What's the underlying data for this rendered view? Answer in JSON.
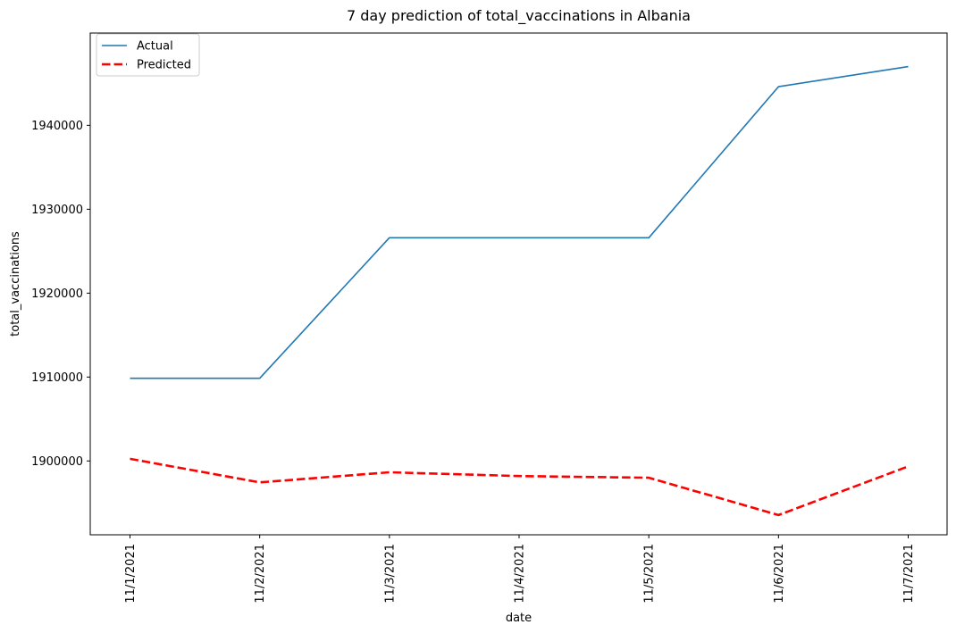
{
  "chart_data": {
    "type": "line",
    "title": "7 day prediction of total_vaccinations in Albania",
    "xlabel": "date",
    "ylabel": "total_vaccinations",
    "categories": [
      "11/1/2021",
      "11/2/2021",
      "11/3/2021",
      "11/4/2021",
      "11/5/2021",
      "11/6/2021",
      "11/7/2021"
    ],
    "yticks": [
      1900000,
      1910000,
      1920000,
      1930000,
      1940000
    ],
    "ylim": [
      1891200,
      1951000
    ],
    "grid": false,
    "legend_position": "top-left",
    "series": [
      {
        "name": "Actual",
        "color": "#1f77b4",
        "style": "solid",
        "values": [
          1909850,
          1909850,
          1926600,
          1926600,
          1926600,
          1944600,
          1947000
        ]
      },
      {
        "name": "Predicted",
        "color": "#ff0000",
        "style": "dashed",
        "values": [
          1900250,
          1897450,
          1898650,
          1898200,
          1898000,
          1893550,
          1899350
        ]
      }
    ]
  }
}
